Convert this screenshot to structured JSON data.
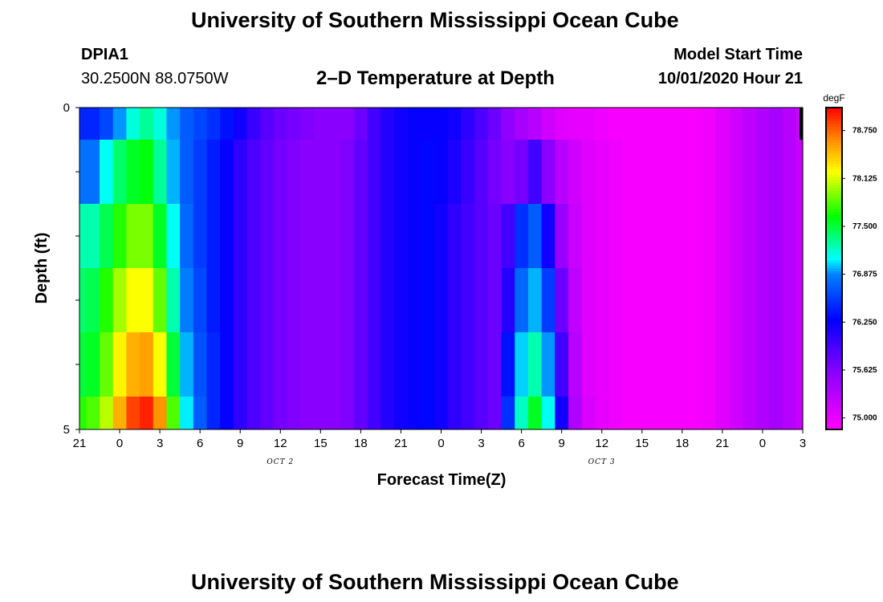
{
  "header": {
    "title": "University of Southern Mississippi Ocean Cube",
    "station": "DPIA1",
    "coords": "30.2500N 88.0750W",
    "plot_title": "2–D Temperature at Depth",
    "model_label": "Model Start Time",
    "model_time": "10/01/2020 Hour 21"
  },
  "footer": {
    "title": "University of Southern Mississippi Ocean Cube"
  },
  "chart_data": {
    "type": "heatmap",
    "title": "2–D Temperature at Depth",
    "xlabel": "Forecast Time(Z)",
    "ylabel": "Depth (ft)",
    "x_tick_labels": [
      "21",
      "0",
      "3",
      "6",
      "9",
      "12",
      "15",
      "18",
      "21",
      "0",
      "3",
      "6",
      "9",
      "12",
      "15",
      "18",
      "21",
      "0",
      "3"
    ],
    "y_tick_labels": [
      "0",
      "5"
    ],
    "ylim": [
      0,
      5
    ],
    "date_labels": [
      {
        "text": "OCT 2",
        "at_tick": 5
      },
      {
        "text": "OCT 3",
        "at_tick": 13
      }
    ],
    "colorbar": {
      "unit": "degF",
      "range": [
        74.85,
        79.05
      ],
      "tick_labels": [
        "75.000",
        "75.625",
        "76.250",
        "76.875",
        "77.500",
        "78.125",
        "78.750"
      ],
      "tick_values": [
        75.0,
        75.625,
        76.25,
        76.875,
        77.5,
        78.125,
        78.75
      ]
    },
    "depth_rows": [
      "0-0.5",
      "0.5-1.5",
      "1.5-2.5",
      "2.5-3.5",
      "3.5-4.5",
      "4.5-5"
    ],
    "x_hours": [
      0,
      1,
      2,
      3,
      4,
      5,
      6,
      7,
      8,
      9,
      10,
      11,
      12,
      13,
      14,
      15,
      16,
      17,
      18,
      19,
      20,
      21,
      22,
      23,
      24,
      25,
      26,
      27,
      28,
      29,
      30,
      31,
      32,
      33,
      34,
      35,
      36,
      37,
      38,
      39,
      40,
      41,
      42,
      43,
      44,
      45,
      46,
      47,
      48,
      49,
      50,
      51,
      52,
      53,
      54
    ],
    "values": [
      [
        76.45,
        76.45,
        76.6,
        76.9,
        77.15,
        77.3,
        77.15,
        76.9,
        76.7,
        76.6,
        76.5,
        76.35,
        76.2,
        76.0,
        75.85,
        75.75,
        75.7,
        75.65,
        75.6,
        75.6,
        75.6,
        75.75,
        75.95,
        76.1,
        76.2,
        76.25,
        76.25,
        76.25,
        76.2,
        76.05,
        75.9,
        75.75,
        75.55,
        75.4,
        75.3,
        75.15,
        75.05,
        75.0,
        75.0,
        74.95,
        74.9,
        74.9,
        74.9,
        74.9,
        74.9,
        74.9,
        74.9,
        74.95,
        75.05,
        75.15,
        75.25,
        75.35,
        75.4,
        75.3,
        75.2
      ],
      [
        76.8,
        76.8,
        77.1,
        77.4,
        77.55,
        77.6,
        77.3,
        76.95,
        76.7,
        76.55,
        76.4,
        76.25,
        76.05,
        75.9,
        75.8,
        75.7,
        75.65,
        75.6,
        75.6,
        75.6,
        75.65,
        75.8,
        75.95,
        76.1,
        76.2,
        76.25,
        76.3,
        76.25,
        76.15,
        76.0,
        75.85,
        75.7,
        75.6,
        75.7,
        75.95,
        75.6,
        75.3,
        75.15,
        75.05,
        75.0,
        74.95,
        74.9,
        74.9,
        74.9,
        74.9,
        74.9,
        74.9,
        74.95,
        75.05,
        75.15,
        75.25,
        75.35,
        75.4,
        75.3,
        75.2
      ],
      [
        77.25,
        77.25,
        77.45,
        77.7,
        77.9,
        77.9,
        77.55,
        77.1,
        76.75,
        76.55,
        76.4,
        76.25,
        76.05,
        75.9,
        75.8,
        75.7,
        75.65,
        75.6,
        75.6,
        75.6,
        75.65,
        75.8,
        75.95,
        76.1,
        76.2,
        76.25,
        76.3,
        76.2,
        76.05,
        75.95,
        75.85,
        75.75,
        75.95,
        76.5,
        76.7,
        76.2,
        75.5,
        75.2,
        75.05,
        75.0,
        74.95,
        74.9,
        74.9,
        74.9,
        74.9,
        74.9,
        74.9,
        74.95,
        75.05,
        75.15,
        75.25,
        75.35,
        75.4,
        75.3,
        75.2
      ],
      [
        77.4,
        77.45,
        77.7,
        78.0,
        78.2,
        78.2,
        77.85,
        77.25,
        76.85,
        76.6,
        76.4,
        76.25,
        76.05,
        75.9,
        75.8,
        75.7,
        75.65,
        75.6,
        75.6,
        75.6,
        75.65,
        75.8,
        75.95,
        76.1,
        76.2,
        76.25,
        76.3,
        76.2,
        76.05,
        75.95,
        75.85,
        75.75,
        76.1,
        76.75,
        76.95,
        76.55,
        75.75,
        75.25,
        75.05,
        75.0,
        74.95,
        74.9,
        74.9,
        74.9,
        74.9,
        74.9,
        74.9,
        74.95,
        75.05,
        75.15,
        75.25,
        75.35,
        75.4,
        75.3,
        75.2
      ],
      [
        77.5,
        77.55,
        77.85,
        78.25,
        78.5,
        78.55,
        78.2,
        77.5,
        76.95,
        76.65,
        76.45,
        76.25,
        76.05,
        75.9,
        75.8,
        75.7,
        75.65,
        75.6,
        75.6,
        75.6,
        75.65,
        75.8,
        75.95,
        76.1,
        76.2,
        76.25,
        76.3,
        76.2,
        76.05,
        75.95,
        75.85,
        75.75,
        76.35,
        77.0,
        77.25,
        76.9,
        75.95,
        75.3,
        75.05,
        75.0,
        74.95,
        74.9,
        74.9,
        74.9,
        74.9,
        74.9,
        74.9,
        74.95,
        75.05,
        75.15,
        75.25,
        75.35,
        75.4,
        75.3,
        75.2
      ],
      [
        77.7,
        77.8,
        78.05,
        78.5,
        78.85,
        78.95,
        78.6,
        77.8,
        77.05,
        76.7,
        76.45,
        76.25,
        76.05,
        75.9,
        75.8,
        75.7,
        75.65,
        75.6,
        75.6,
        75.6,
        75.65,
        75.8,
        75.95,
        76.1,
        76.2,
        76.25,
        76.3,
        76.2,
        76.05,
        75.95,
        75.85,
        75.75,
        76.5,
        77.2,
        77.55,
        77.1,
        76.2,
        75.35,
        75.1,
        75.0,
        74.95,
        74.9,
        74.9,
        74.9,
        74.9,
        74.9,
        74.9,
        74.95,
        75.05,
        75.15,
        75.25,
        75.35,
        75.4,
        75.3,
        75.2
      ]
    ]
  }
}
